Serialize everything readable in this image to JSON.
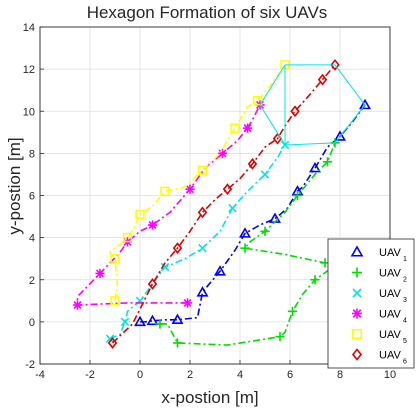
{
  "chart_data": {
    "type": "line",
    "title": "Hexagon Formation of six UAVs",
    "xlabel": "x-postion [m]",
    "ylabel": "y-postion [m]",
    "xlim": [
      -4,
      10
    ],
    "ylim": [
      -2,
      14
    ],
    "xticks": [
      -4,
      -2,
      0,
      2,
      4,
      6,
      8,
      10
    ],
    "yticks": [
      -2,
      0,
      2,
      4,
      6,
      8,
      10,
      12,
      14
    ],
    "grid": true,
    "legend_position": "bottom-right",
    "series": [
      {
        "name": "UAV",
        "sub": "1",
        "color": "#0000ff",
        "marker": "triangle",
        "style": "dashdot",
        "points": [
          [
            0,
            0
          ],
          [
            0.2,
            0
          ],
          [
            0.5,
            0.05
          ],
          [
            1,
            0.1
          ],
          [
            1.5,
            0.1
          ],
          [
            2.3,
            0.2
          ],
          [
            2.5,
            1.4
          ],
          [
            2.7,
            1.7
          ],
          [
            3.2,
            2.4
          ],
          [
            3.8,
            3.4
          ],
          [
            4.2,
            4.2
          ],
          [
            4.8,
            4.6
          ],
          [
            5.4,
            4.9
          ],
          [
            5.9,
            5.4
          ],
          [
            6.3,
            6.2
          ],
          [
            6.5,
            6.4
          ],
          [
            7.0,
            7.3
          ],
          [
            7.5,
            8.3
          ],
          [
            8.0,
            8.8
          ],
          [
            8.5,
            9.5
          ],
          [
            9.0,
            10.3
          ]
        ]
      },
      {
        "name": "UAV",
        "sub": "2",
        "color": "#00dd00",
        "marker": "plus",
        "style": "dashdot",
        "points": [
          [
            0.8,
            -0.1
          ],
          [
            1.1,
            -0.1
          ],
          [
            1.5,
            -1.0
          ],
          [
            3.5,
            -1.1
          ],
          [
            5.6,
            -0.7
          ],
          [
            5.8,
            -0.5
          ],
          [
            6.1,
            0.5
          ],
          [
            6.5,
            1.3
          ],
          [
            7.0,
            2.0
          ],
          [
            7.6,
            2.5
          ],
          [
            7.4,
            2.8
          ],
          [
            5.8,
            3.2
          ],
          [
            4.2,
            3.5
          ],
          [
            4.4,
            3.8
          ],
          [
            5.0,
            4.3
          ],
          [
            5.8,
            5.2
          ],
          [
            6.3,
            6.0
          ],
          [
            7.0,
            7.0
          ],
          [
            7.5,
            7.6
          ],
          [
            7.8,
            8.5
          ]
        ]
      },
      {
        "name": "UAV",
        "sub": "3",
        "color": "#00e5e5",
        "marker": "cross",
        "style": "dashdot",
        "points": [
          [
            -1.2,
            -0.8
          ],
          [
            -0.8,
            -0.6
          ],
          [
            -0.6,
            0
          ],
          [
            -0.5,
            0.5
          ],
          [
            0,
            1.0
          ],
          [
            0.5,
            1.8
          ],
          [
            1.0,
            2.6
          ],
          [
            1.8,
            3.0
          ],
          [
            2.5,
            3.5
          ],
          [
            3.2,
            4.3
          ],
          [
            3.7,
            5.4
          ],
          [
            4.3,
            6.2
          ],
          [
            5.0,
            7.0
          ],
          [
            5.5,
            7.8
          ],
          [
            5.8,
            8.4
          ]
        ]
      },
      {
        "name": "UAV",
        "sub": "4",
        "color": "#ff00ff",
        "marker": "asterisk",
        "style": "dashdot",
        "points": [
          [
            1.9,
            0.9
          ],
          [
            -0.5,
            0.9
          ],
          [
            -2.5,
            0.8
          ],
          [
            -2.5,
            1.2
          ],
          [
            -1.6,
            2.3
          ],
          [
            -0.8,
            3.3
          ],
          [
            -0.5,
            3.8
          ],
          [
            0,
            4.3
          ],
          [
            0.5,
            4.6
          ],
          [
            1.2,
            5.2
          ],
          [
            2.0,
            6.3
          ],
          [
            2.6,
            7.3
          ],
          [
            3.3,
            8.0
          ],
          [
            3.9,
            8.6
          ],
          [
            4.3,
            9.2
          ],
          [
            4.5,
            9.6
          ],
          [
            4.8,
            10.3
          ]
        ]
      },
      {
        "name": "UAV",
        "sub": "5",
        "color": "#ffff00",
        "marker": "square",
        "style": "dashdot",
        "points": [
          [
            -1.0,
            1.0
          ],
          [
            -0.9,
            1.7
          ],
          [
            -1.0,
            3.0
          ],
          [
            -1.2,
            3.3
          ],
          [
            -0.5,
            4.0
          ],
          [
            -0.3,
            4.3
          ],
          [
            0,
            5.1
          ],
          [
            0.5,
            5.5
          ],
          [
            1.0,
            6.2
          ],
          [
            1.8,
            6.4
          ],
          [
            2.5,
            7.2
          ],
          [
            3.2,
            8.0
          ],
          [
            3.8,
            9.2
          ],
          [
            4.3,
            10.2
          ],
          [
            4.7,
            10.5
          ],
          [
            5.2,
            11.2
          ],
          [
            5.8,
            12.2
          ]
        ]
      },
      {
        "name": "UAV",
        "sub": "6",
        "color": "#dd0000",
        "marker": "diamond",
        "style": "dashdot",
        "points": [
          [
            -1.1,
            -1.0
          ],
          [
            -0.3,
            -0.1
          ],
          [
            0.5,
            1.8
          ],
          [
            1.0,
            2.8
          ],
          [
            1.5,
            3.5
          ],
          [
            2.0,
            4.3
          ],
          [
            2.5,
            5.2
          ],
          [
            3.0,
            5.8
          ],
          [
            3.5,
            6.3
          ],
          [
            4.0,
            6.8
          ],
          [
            4.5,
            7.5
          ],
          [
            5.0,
            8.3
          ],
          [
            5.5,
            8.7
          ],
          [
            5.8,
            9.3
          ],
          [
            6.2,
            10.0
          ],
          [
            6.8,
            10.8
          ],
          [
            7.3,
            11.5
          ],
          [
            7.8,
            12.2
          ]
        ]
      }
    ],
    "formation_hexagon": [
      [
        5.8,
        12.2
      ],
      [
        7.8,
        12.2
      ],
      [
        9.0,
        10.3
      ],
      [
        7.8,
        8.5
      ],
      [
        5.8,
        8.4
      ],
      [
        4.8,
        10.3
      ],
      [
        5.8,
        12.2
      ]
    ],
    "formation_connector": [
      [
        5.8,
        12.2
      ],
      [
        5.8,
        8.4
      ]
    ],
    "formation_color": "#00e5e5"
  }
}
